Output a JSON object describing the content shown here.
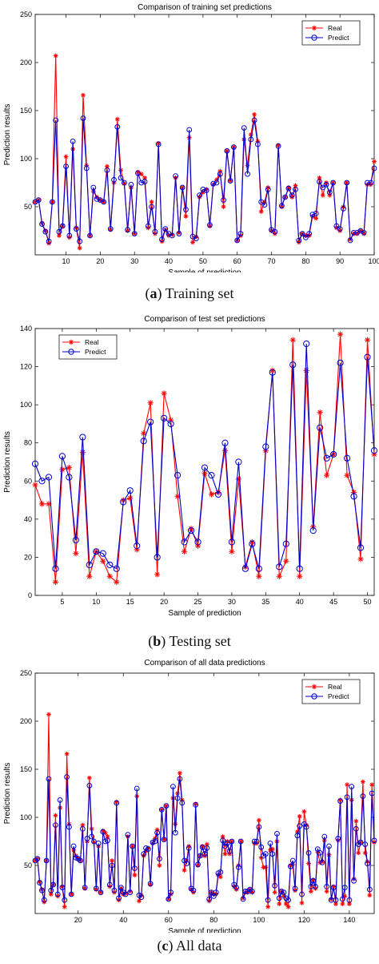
{
  "captions": [
    {
      "letter": "a",
      "text": "Training set"
    },
    {
      "letter": "b",
      "text": "Testing set"
    },
    {
      "letter": "c",
      "text": "All data"
    }
  ],
  "colors": {
    "real": "#ff0000",
    "predict": "#0000cc"
  },
  "chart_data": [
    {
      "type": "line",
      "title": "Comparison of training set predictions",
      "xlabel": "Sample of prediction",
      "ylabel": "Prediction results",
      "xlim": [
        1,
        100
      ],
      "ylim": [
        0,
        250
      ],
      "xticks": [
        10,
        20,
        30,
        40,
        50,
        60,
        70,
        80,
        90,
        100
      ],
      "yticks": [
        50,
        100,
        150,
        200,
        250
      ],
      "legend": {
        "position": "top-right",
        "entries": [
          "Real",
          "Predict"
        ]
      },
      "grid": false,
      "series": [
        {
          "name": "Real",
          "marker": "asterisk",
          "color": "#ff0000",
          "values": [
            55,
            57,
            33,
            25,
            12,
            55,
            207,
            20,
            30,
            102,
            18,
            110,
            28,
            7,
            166,
            93,
            20,
            66,
            60,
            57,
            55,
            92,
            26,
            75,
            141,
            88,
            74,
            25,
            70,
            22,
            86,
            84,
            80,
            28,
            55,
            22,
            116,
            14,
            26,
            20,
            21,
            80,
            23,
            70,
            40,
            122,
            13,
            19,
            60,
            65,
            68,
            30,
            73,
            78,
            87,
            50,
            108,
            77,
            112,
            15,
            20,
            120,
            93,
            125,
            146,
            118,
            45,
            55,
            70,
            25,
            22,
            114,
            50,
            60,
            70,
            60,
            72,
            13,
            22,
            20,
            20,
            40,
            38,
            80,
            62,
            75,
            62,
            75,
            28,
            25,
            50,
            75,
            16,
            22,
            22,
            25,
            22,
            73,
            73,
            97
          ]
        },
        {
          "name": "Predict",
          "marker": "circle",
          "color": "#0000cc",
          "values": [
            55,
            57,
            32,
            24,
            14,
            55,
            140,
            24,
            30,
            92,
            20,
            118,
            27,
            14,
            142,
            90,
            20,
            70,
            58,
            57,
            55,
            88,
            27,
            78,
            133,
            80,
            75,
            26,
            73,
            22,
            85,
            75,
            76,
            30,
            50,
            24,
            115,
            16,
            27,
            22,
            20,
            82,
            22,
            70,
            47,
            130,
            19,
            17,
            62,
            68,
            67,
            31,
            74,
            75,
            84,
            57,
            108,
            77,
            112,
            15,
            22,
            132,
            84,
            120,
            140,
            115,
            55,
            52,
            68,
            26,
            24,
            113,
            51,
            60,
            69,
            62,
            68,
            15,
            22,
            18,
            22,
            42,
            43,
            76,
            70,
            73,
            65,
            75,
            30,
            27,
            48,
            75,
            15,
            23,
            23,
            25,
            23,
            75,
            75,
            90
          ]
        }
      ]
    },
    {
      "type": "line",
      "title": "Comparison of test set predictions",
      "xlabel": "Sample of prediction",
      "ylabel": "Prediction results",
      "xlim": [
        1,
        51
      ],
      "ylim": [
        0,
        140
      ],
      "xticks": [
        5,
        10,
        15,
        20,
        25,
        30,
        35,
        40,
        45,
        50
      ],
      "yticks": [
        0,
        20,
        40,
        60,
        80,
        100,
        120,
        140
      ],
      "legend": {
        "position": "top-left",
        "entries": [
          "Real",
          "Predict"
        ]
      },
      "grid": false,
      "series": [
        {
          "name": "Real",
          "marker": "asterisk",
          "color": "#ff0000",
          "values": [
            58,
            48,
            48,
            7,
            66,
            67,
            22,
            75,
            10,
            23,
            18,
            10,
            7,
            50,
            51,
            24,
            85,
            101,
            11,
            106,
            92,
            52,
            23,
            35,
            26,
            64,
            53,
            54,
            76,
            23,
            61,
            15,
            28,
            10,
            76,
            118,
            10,
            18,
            134,
            10,
            118,
            36,
            96,
            63,
            74,
            137,
            63,
            54,
            19,
            134,
            74
          ]
        },
        {
          "name": "Predict",
          "marker": "circle",
          "color": "#0000cc",
          "values": [
            69,
            60,
            62,
            14,
            73,
            62,
            29,
            83,
            16,
            23,
            22,
            16,
            14,
            49,
            55,
            26,
            81,
            91,
            20,
            93,
            90,
            63,
            28,
            34,
            28,
            67,
            63,
            53,
            80,
            28,
            70,
            14,
            27,
            14,
            78,
            117,
            15,
            27,
            121,
            14,
            132,
            34,
            88,
            72,
            74,
            122,
            72,
            52,
            25,
            125,
            76
          ]
        }
      ]
    },
    {
      "type": "line",
      "title": "Comparison of all data predictions",
      "xlabel": "Sample of prediction",
      "ylabel": "Prediction results",
      "xlim": [
        1,
        151
      ],
      "ylim": [
        0,
        250
      ],
      "xticks": [
        20,
        40,
        60,
        80,
        100,
        120,
        140
      ],
      "yticks": [
        50,
        100,
        150,
        200,
        250
      ],
      "legend": {
        "position": "top-right",
        "entries": [
          "Real",
          "Predict"
        ]
      },
      "grid": false,
      "series": [
        {
          "name": "Real",
          "marker": "asterisk",
          "color": "#ff0000",
          "values": [
            55,
            57,
            33,
            25,
            12,
            55,
            207,
            20,
            30,
            102,
            18,
            110,
            28,
            7,
            166,
            93,
            20,
            66,
            60,
            57,
            55,
            92,
            26,
            75,
            141,
            88,
            74,
            25,
            70,
            22,
            86,
            84,
            80,
            28,
            55,
            22,
            116,
            14,
            26,
            20,
            21,
            80,
            23,
            70,
            40,
            122,
            13,
            19,
            60,
            65,
            68,
            30,
            73,
            78,
            87,
            50,
            108,
            77,
            112,
            15,
            20,
            120,
            93,
            125,
            146,
            118,
            45,
            55,
            70,
            25,
            22,
            114,
            50,
            60,
            70,
            60,
            72,
            13,
            22,
            20,
            20,
            40,
            38,
            80,
            62,
            75,
            62,
            75,
            28,
            25,
            50,
            75,
            16,
            22,
            22,
            25,
            22,
            73,
            73,
            97,
            58,
            48,
            48,
            7,
            66,
            67,
            22,
            75,
            10,
            23,
            18,
            10,
            7,
            50,
            51,
            24,
            85,
            101,
            11,
            106,
            92,
            52,
            23,
            35,
            26,
            64,
            53,
            54,
            76,
            23,
            61,
            15,
            28,
            10,
            76,
            118,
            10,
            18,
            134,
            10,
            118,
            36,
            96,
            63,
            74,
            137,
            63,
            54,
            19,
            134,
            74
          ]
        },
        {
          "name": "Predict",
          "marker": "circle",
          "color": "#0000cc",
          "values": [
            55,
            57,
            32,
            24,
            14,
            55,
            140,
            24,
            30,
            92,
            20,
            118,
            27,
            14,
            142,
            90,
            20,
            70,
            58,
            57,
            55,
            88,
            27,
            78,
            133,
            80,
            75,
            26,
            73,
            22,
            85,
            75,
            76,
            30,
            50,
            24,
            115,
            16,
            27,
            22,
            20,
            82,
            22,
            70,
            47,
            130,
            19,
            17,
            62,
            68,
            67,
            31,
            74,
            75,
            84,
            57,
            108,
            77,
            112,
            15,
            22,
            132,
            84,
            120,
            140,
            115,
            55,
            52,
            68,
            26,
            24,
            113,
            51,
            60,
            69,
            62,
            68,
            15,
            22,
            18,
            22,
            42,
            43,
            76,
            70,
            73,
            65,
            75,
            30,
            27,
            48,
            75,
            15,
            23,
            23,
            25,
            23,
            75,
            75,
            90,
            69,
            60,
            62,
            14,
            73,
            62,
            29,
            83,
            16,
            23,
            22,
            16,
            14,
            49,
            55,
            26,
            81,
            91,
            20,
            93,
            90,
            63,
            28,
            34,
            28,
            67,
            63,
            53,
            80,
            28,
            70,
            14,
            27,
            14,
            78,
            117,
            15,
            27,
            121,
            14,
            132,
            34,
            88,
            72,
            74,
            122,
            72,
            52,
            25,
            125,
            76
          ]
        }
      ]
    }
  ]
}
